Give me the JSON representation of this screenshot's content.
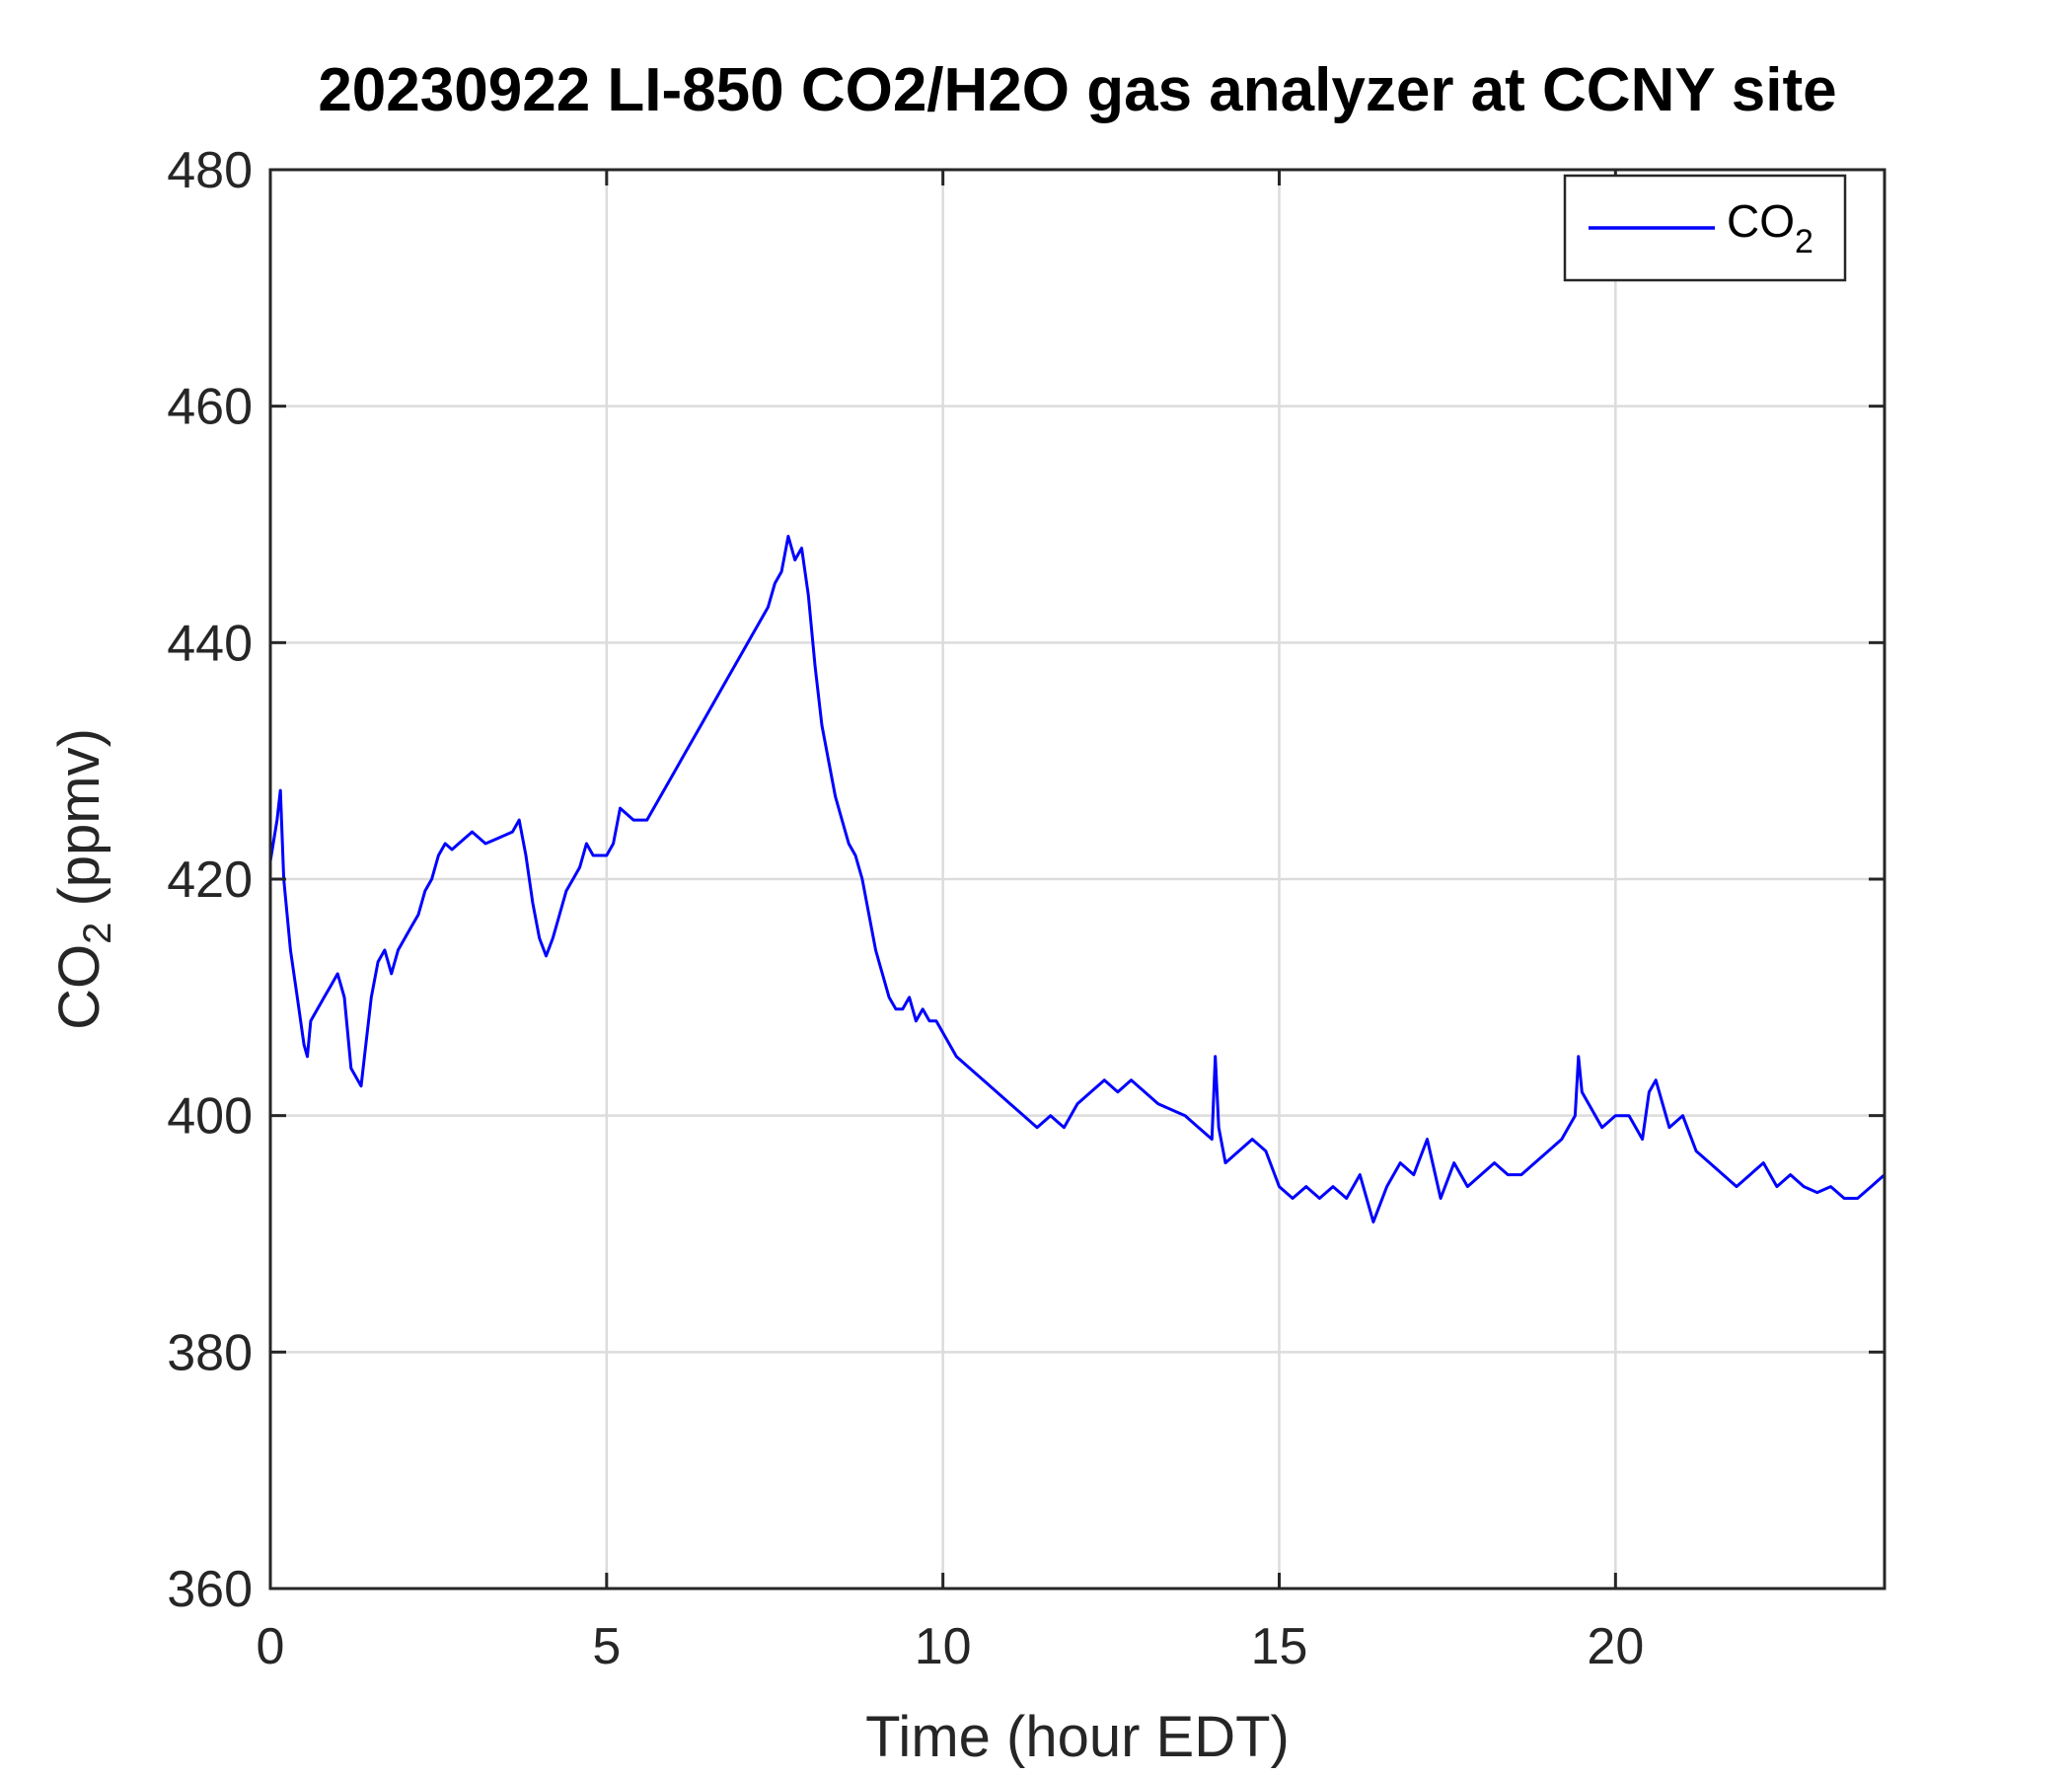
{
  "chart_data": {
    "type": "line",
    "title": "20230922 LI-850 CO2/H2O gas analyzer at CCNY site",
    "xlabel": "Time (hour EDT)",
    "ylabel": {
      "base": "CO",
      "sub": "2",
      "rest": " (ppmv)"
    },
    "xlim": [
      0,
      24
    ],
    "ylim": [
      360,
      480
    ],
    "xticks": [
      0,
      5,
      10,
      15,
      20
    ],
    "yticks": [
      360,
      380,
      400,
      420,
      440,
      460,
      480
    ],
    "grid": true,
    "legend_position": "top-right",
    "series": [
      {
        "name": {
          "base": "CO",
          "sub": "2"
        },
        "color": "#0000ff",
        "x": [
          0.0,
          0.1,
          0.15,
          0.2,
          0.3,
          0.4,
          0.5,
          0.55,
          0.6,
          0.7,
          0.8,
          0.9,
          1.0,
          1.1,
          1.2,
          1.3,
          1.35,
          1.4,
          1.5,
          1.6,
          1.7,
          1.8,
          1.9,
          2.0,
          2.1,
          2.2,
          2.3,
          2.4,
          2.5,
          2.6,
          2.7,
          2.8,
          3.0,
          3.2,
          3.4,
          3.6,
          3.7,
          3.8,
          3.9,
          4.0,
          4.1,
          4.2,
          4.3,
          4.4,
          4.5,
          4.6,
          4.7,
          4.8,
          5.0,
          5.1,
          5.2,
          5.4,
          5.6,
          5.8,
          6.0,
          6.2,
          6.4,
          6.6,
          6.8,
          7.0,
          7.2,
          7.4,
          7.5,
          7.6,
          7.7,
          7.8,
          7.9,
          8.0,
          8.1,
          8.2,
          8.3,
          8.4,
          8.5,
          8.6,
          8.7,
          8.8,
          8.9,
          9.0,
          9.1,
          9.2,
          9.3,
          9.4,
          9.5,
          9.6,
          9.7,
          9.8,
          9.9,
          10.0,
          10.2,
          10.4,
          10.6,
          10.8,
          11.0,
          11.2,
          11.4,
          11.6,
          11.8,
          12.0,
          12.2,
          12.4,
          12.6,
          12.8,
          13.0,
          13.2,
          13.4,
          13.6,
          13.8,
          14.0,
          14.05,
          14.1,
          14.2,
          14.4,
          14.6,
          14.8,
          15.0,
          15.2,
          15.4,
          15.6,
          15.8,
          16.0,
          16.2,
          16.4,
          16.6,
          16.8,
          17.0,
          17.2,
          17.4,
          17.6,
          17.8,
          18.0,
          18.2,
          18.4,
          18.6,
          18.8,
          19.0,
          19.2,
          19.4,
          19.45,
          19.5,
          19.6,
          19.8,
          20.0,
          20.2,
          20.4,
          20.5,
          20.6,
          20.8,
          21.0,
          21.2,
          21.4,
          21.6,
          21.8,
          22.0,
          22.2,
          22.4,
          22.6,
          22.8,
          23.0,
          23.2,
          23.4,
          23.6,
          23.8,
          24.0
        ],
        "y": [
          421.5,
          425,
          427.5,
          420,
          414,
          410,
          406,
          405,
          408,
          409,
          410,
          411,
          412,
          410,
          404,
          403,
          402.5,
          405,
          410,
          413,
          414,
          412,
          414,
          415,
          416,
          417,
          419,
          420,
          422,
          423,
          422.5,
          423,
          424,
          423,
          423.5,
          424,
          425,
          422,
          418,
          415,
          413.5,
          415,
          417,
          419,
          420,
          421,
          423,
          422,
          422,
          423,
          426,
          425,
          425,
          427,
          429,
          431,
          433,
          435,
          437,
          439,
          441,
          443,
          445,
          446,
          449,
          447,
          448,
          444,
          438,
          433,
          430,
          427,
          425,
          423,
          422,
          420,
          417,
          414,
          412,
          410,
          409,
          409,
          410,
          408,
          409,
          408,
          408,
          407,
          405,
          404,
          403,
          402,
          401,
          400,
          399,
          400,
          399,
          401,
          402,
          403,
          402,
          403,
          402,
          401,
          400.5,
          400,
          399,
          398,
          405,
          399,
          396,
          397,
          398,
          397,
          394,
          393,
          394,
          393,
          394,
          393,
          395,
          391,
          394,
          396,
          395,
          398,
          393,
          396,
          394,
          395,
          396,
          395,
          395,
          396,
          397,
          398,
          400,
          405,
          402,
          401,
          399,
          400,
          400,
          398,
          402,
          403,
          399,
          400,
          397,
          396,
          395,
          394,
          395,
          396,
          394,
          395,
          394,
          393.5,
          394,
          393,
          393,
          394,
          395
        ]
      }
    ]
  }
}
